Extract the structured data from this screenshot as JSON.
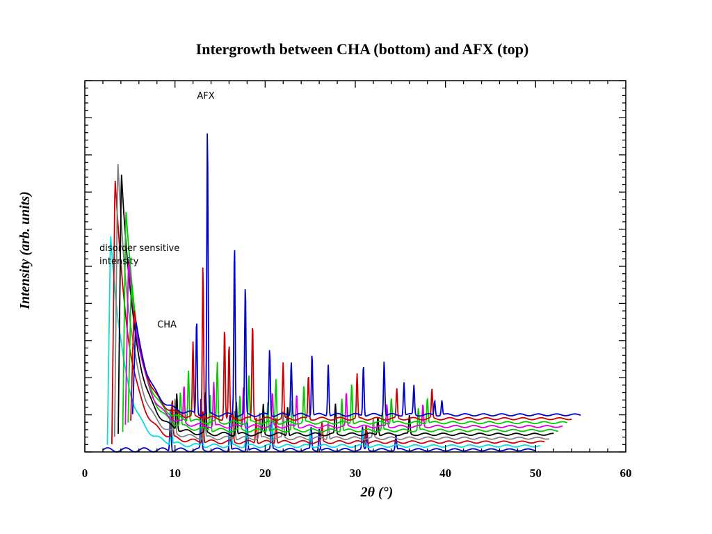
{
  "chart_data": {
    "type": "line",
    "title": "Intergrowth between CHA (bottom) and AFX (top)",
    "xlabel": "2θ (°)",
    "ylabel": "Intensity (arb. units)",
    "xlim": [
      0,
      60
    ],
    "xticks": [
      "0",
      "10",
      "20",
      "30",
      "40",
      "50",
      "60"
    ],
    "yticks_labeled": false,
    "grid": false,
    "legend": "none",
    "annotations": [
      {
        "text": "AFX"
      },
      {
        "text": "CHA"
      },
      {
        "text": "disorder sensitive"
      },
      {
        "text": "intensity"
      }
    ],
    "series": [
      {
        "color": "#0000cc",
        "x_start": 2.0,
        "x_end": 50.0,
        "low_angle_peak": 0,
        "sharp_peaks": [
          [
            9.5,
            12
          ],
          [
            12.9,
            14
          ],
          [
            16.1,
            10
          ],
          [
            18.0,
            8
          ],
          [
            20.7,
            8
          ],
          [
            25.1,
            6
          ],
          [
            26.0,
            6
          ],
          [
            30.8,
            6
          ],
          [
            31.3,
            5
          ],
          [
            34.5,
            4
          ]
        ]
      },
      {
        "color": "#00e0e0",
        "x_start": 2.5,
        "x_end": 50.5,
        "low_angle_peak": 58,
        "sharp_peaks": [
          [
            9.6,
            10
          ],
          [
            13.0,
            8
          ],
          [
            16.2,
            6
          ],
          [
            17.9,
            6
          ],
          [
            20.8,
            6
          ],
          [
            25.0,
            4
          ],
          [
            30.9,
            4
          ]
        ]
      },
      {
        "color": "#cc0000",
        "x_start": 3.0,
        "x_end": 51.0,
        "low_angle_peak": 72,
        "sharp_peaks": [
          [
            9.7,
            10
          ],
          [
            13.1,
            9
          ],
          [
            16.4,
            8
          ],
          [
            19.0,
            7
          ],
          [
            21.2,
            7
          ],
          [
            26.3,
            5
          ],
          [
            31.2,
            5
          ]
        ]
      },
      {
        "color": "#808080",
        "x_start": 3.3,
        "x_end": 51.5,
        "low_angle_peak": 75,
        "sharp_peaks": [
          [
            10.0,
            9
          ],
          [
            13.3,
            9
          ],
          [
            16.6,
            8
          ],
          [
            19.4,
            7
          ],
          [
            22.0,
            7
          ],
          [
            27.0,
            5
          ],
          [
            32.0,
            5
          ]
        ]
      },
      {
        "color": "#000000",
        "x_start": 3.7,
        "x_end": 52.0,
        "low_angle_peak": 72,
        "sharp_peaks": [
          [
            10.2,
            10
          ],
          [
            13.4,
            11
          ],
          [
            16.8,
            9
          ],
          [
            19.8,
            8
          ],
          [
            22.5,
            8
          ],
          [
            27.8,
            8
          ],
          [
            32.5,
            5
          ],
          [
            36.0,
            5
          ]
        ]
      },
      {
        "color": "#00cc00",
        "x_start": 4.2,
        "x_end": 52.5,
        "low_angle_peak": 60,
        "sharp_peaks": [
          [
            10.6,
            9
          ],
          [
            13.9,
            10
          ],
          [
            17.2,
            9
          ],
          [
            20.3,
            8
          ],
          [
            23.0,
            8
          ],
          [
            28.5,
            9
          ],
          [
            33.0,
            5
          ],
          [
            37.0,
            6
          ]
        ]
      },
      {
        "color": "#e000e0",
        "x_start": 4.5,
        "x_end": 53.0,
        "low_angle_peak": 45,
        "sharp_peaks": [
          [
            11.0,
            10
          ],
          [
            14.3,
            12
          ],
          [
            17.6,
            11
          ],
          [
            20.8,
            9
          ],
          [
            23.5,
            9
          ],
          [
            29.0,
            9
          ],
          [
            33.5,
            6
          ],
          [
            37.5,
            6
          ]
        ]
      },
      {
        "color": "#00cc00",
        "x_start": 4.8,
        "x_end": 53.5,
        "low_angle_peak": 38,
        "sharp_peaks": [
          [
            11.5,
            14
          ],
          [
            14.7,
            16
          ],
          [
            18.2,
            13
          ],
          [
            21.2,
            12
          ],
          [
            24.3,
            10
          ],
          [
            29.6,
            11
          ],
          [
            34.0,
            7
          ],
          [
            38.0,
            7
          ]
        ]
      },
      {
        "color": "#cc0000",
        "x_start": 5.1,
        "x_end": 54.0,
        "low_angle_peak": 30,
        "sharp_peaks": [
          [
            12.0,
            20
          ],
          [
            13.1,
            42
          ],
          [
            15.5,
            25
          ],
          [
            16.0,
            20
          ],
          [
            18.6,
            26
          ],
          [
            22.0,
            15
          ],
          [
            24.8,
            12
          ],
          [
            30.2,
            12
          ],
          [
            34.6,
            8
          ],
          [
            38.5,
            8
          ]
        ]
      },
      {
        "color": "#0000cc",
        "x_start": 5.3,
        "x_end": 55.0,
        "low_angle_peak": 25,
        "sharp_peaks": [
          [
            12.4,
            26
          ],
          [
            13.6,
            78
          ],
          [
            16.6,
            47
          ],
          [
            17.8,
            35
          ],
          [
            20.5,
            18
          ],
          [
            22.9,
            15
          ],
          [
            25.2,
            17
          ],
          [
            27.0,
            14
          ],
          [
            30.9,
            14
          ],
          [
            33.2,
            15
          ],
          [
            35.4,
            9
          ],
          [
            36.5,
            8
          ],
          [
            38.8,
            4
          ],
          [
            39.6,
            4
          ]
        ]
      }
    ]
  }
}
